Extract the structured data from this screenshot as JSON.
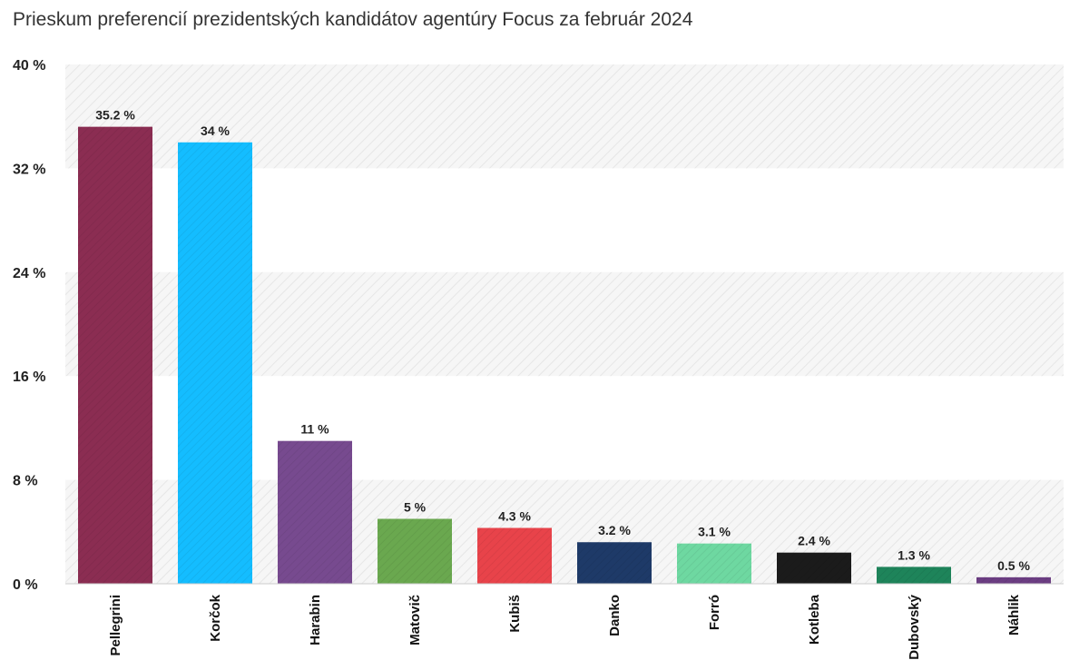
{
  "chart_data": {
    "type": "bar",
    "title": "Prieskum preferencií prezidentských kandidátov agentúry Focus za február 2024",
    "xlabel": "",
    "ylabel": "",
    "ylim": [
      0,
      40
    ],
    "yticks": [
      0,
      8,
      16,
      24,
      32,
      40
    ],
    "ytick_labels": [
      "0 %",
      "8 %",
      "16 %",
      "24 %",
      "32 %",
      "40 %"
    ],
    "grid": "alternating hatched bands",
    "categories": [
      "Pellegrini",
      "Korčok",
      "Harabin",
      "Matovič",
      "Kubiš",
      "Danko",
      "Forró",
      "Kotleba",
      "Dubovský",
      "Náhlik"
    ],
    "values": [
      35.2,
      34,
      11,
      5,
      4.3,
      3.2,
      3.1,
      2.4,
      1.3,
      0.5
    ],
    "value_labels": [
      "35.2 %",
      "34 %",
      "11 %",
      "5 %",
      "4.3 %",
      "3.2 %",
      "3.1 %",
      "2.4 %",
      "1.3 %",
      "0.5 %"
    ],
    "colors": [
      "#8b2d52",
      "#14bdff",
      "#774a8f",
      "#6aa84f",
      "#e8434a",
      "#1e3a68",
      "#6ed8a1",
      "#1b1b1b",
      "#1e845a",
      "#6b3d82"
    ]
  }
}
